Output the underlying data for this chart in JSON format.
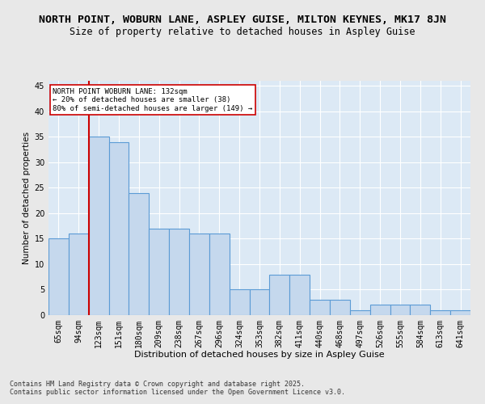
{
  "title": "NORTH POINT, WOBURN LANE, ASPLEY GUISE, MILTON KEYNES, MK17 8JN",
  "subtitle": "Size of property relative to detached houses in Aspley Guise",
  "xlabel": "Distribution of detached houses by size in Aspley Guise",
  "ylabel": "Number of detached properties",
  "categories": [
    "65sqm",
    "94sqm",
    "123sqm",
    "151sqm",
    "180sqm",
    "209sqm",
    "238sqm",
    "267sqm",
    "296sqm",
    "324sqm",
    "353sqm",
    "382sqm",
    "411sqm",
    "440sqm",
    "468sqm",
    "497sqm",
    "526sqm",
    "555sqm",
    "584sqm",
    "613sqm",
    "641sqm"
  ],
  "values": [
    15,
    16,
    35,
    34,
    24,
    17,
    17,
    16,
    16,
    5,
    5,
    8,
    8,
    3,
    3,
    1,
    2,
    2,
    2,
    1,
    1
  ],
  "bar_color": "#c5d8ed",
  "bar_edge_color": "#5b9bd5",
  "highlight_line_index": 2,
  "highlight_line_color": "#cc0000",
  "annotation_text": "NORTH POINT WOBURN LANE: 132sqm\n← 20% of detached houses are smaller (38)\n80% of semi-detached houses are larger (149) →",
  "annotation_box_color": "#ffffff",
  "annotation_box_edge_color": "#cc0000",
  "ylim": [
    0,
    46
  ],
  "yticks": [
    0,
    5,
    10,
    15,
    20,
    25,
    30,
    35,
    40,
    45
  ],
  "bg_color": "#dce9f5",
  "grid_color": "#ffffff",
  "footer_text": "Contains HM Land Registry data © Crown copyright and database right 2025.\nContains public sector information licensed under the Open Government Licence v3.0.",
  "title_fontsize": 9.5,
  "subtitle_fontsize": 8.5,
  "annotation_fontsize": 6.5,
  "tick_fontsize": 7,
  "xlabel_fontsize": 8,
  "ylabel_fontsize": 7.5,
  "footer_fontsize": 6
}
